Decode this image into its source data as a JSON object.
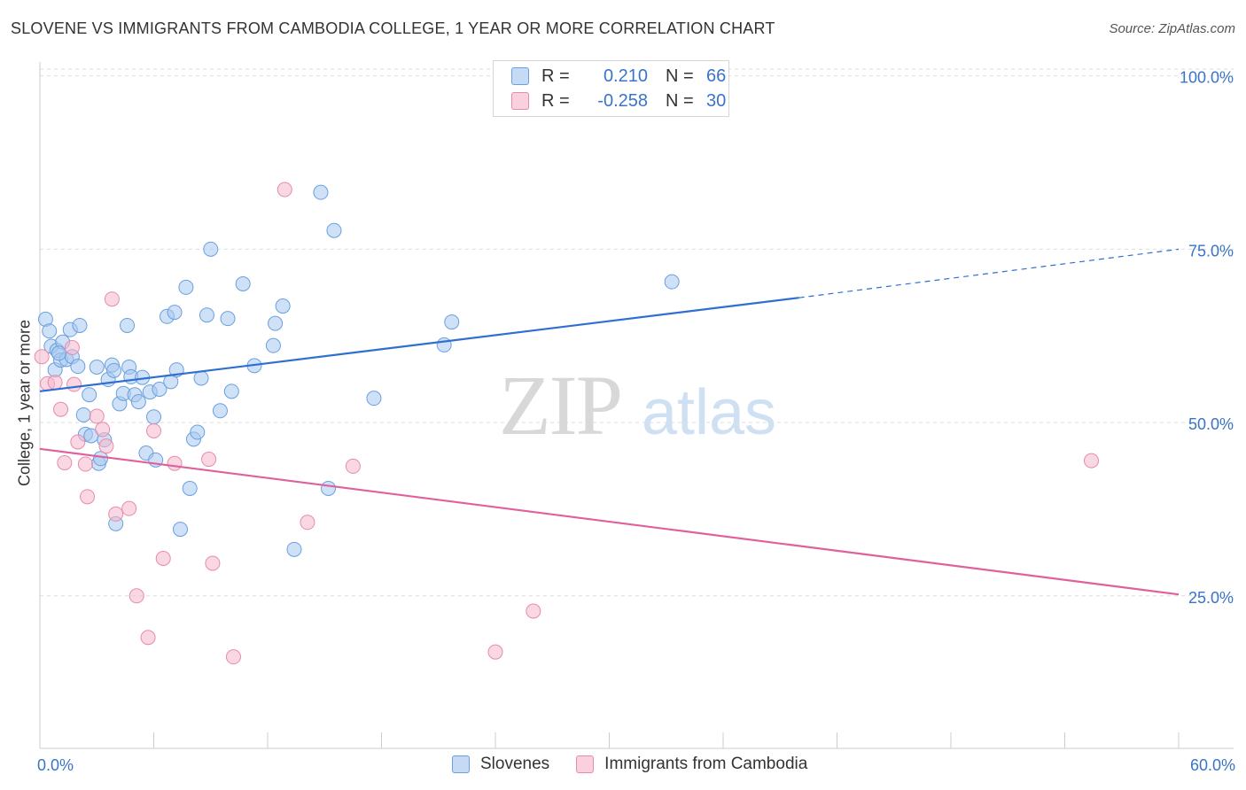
{
  "title": "SLOVENE VS IMMIGRANTS FROM CAMBODIA COLLEGE, 1 YEAR OR MORE CORRELATION CHART",
  "source": "Source: ZipAtlas.com",
  "watermark": {
    "zip": "ZIP",
    "atlas": "atlas"
  },
  "legend_top": {
    "rows": [
      {
        "r_label": "R =",
        "r_value": "0.210",
        "n_label": "N =",
        "n_value": "66",
        "color": "#a8c8f0"
      },
      {
        "r_label": "R =",
        "r_value": "-0.258",
        "n_label": "N =",
        "n_value": "30",
        "color": "#f5b8cc"
      }
    ]
  },
  "legend_bottom": {
    "items": [
      {
        "label": "Slovenes",
        "color": "#a8c8f0"
      },
      {
        "label": "Immigrants from Cambodia",
        "color": "#f5b8cc"
      }
    ]
  },
  "chart_data": {
    "type": "scatter",
    "title": "SLOVENE VS IMMIGRANTS FROM CAMBODIA COLLEGE, 1 YEAR OR MORE CORRELATION CHART",
    "xlabel": "",
    "ylabel": "College, 1 year or more",
    "xlim": [
      0,
      60
    ],
    "ylim": [
      3,
      102
    ],
    "x_tick_labels": [
      {
        "value": 0,
        "label": "0.0%"
      },
      {
        "value": 60,
        "label": "60.0%"
      }
    ],
    "y_tick_labels": [
      {
        "value": 100,
        "label": "100.0%"
      },
      {
        "value": 75,
        "label": "75.0%"
      },
      {
        "value": 50,
        "label": "50.0%"
      },
      {
        "value": 25,
        "label": "25.0%"
      }
    ],
    "grid": true,
    "legend_position": "bottom",
    "series": [
      {
        "name": "Slovenes",
        "color": "#a8c8f0",
        "stroke": "#6a9fdf",
        "trend_color": "#2f6fd0",
        "trend": {
          "x0": 0,
          "y0": 54.5,
          "x1": 40,
          "y1": 68,
          "dashed_to": 60,
          "dashed_y": 75
        },
        "points": [
          [
            0.3,
            64.9
          ],
          [
            0.5,
            63.2
          ],
          [
            0.6,
            61
          ],
          [
            0.8,
            57.6
          ],
          [
            0.9,
            60.4
          ],
          [
            1.1,
            59
          ],
          [
            1.2,
            61.6
          ],
          [
            1.4,
            59.1
          ],
          [
            1.6,
            63.4
          ],
          [
            1.7,
            59.5
          ],
          [
            2.0,
            58.1
          ],
          [
            2.1,
            64
          ],
          [
            2.3,
            51.1
          ],
          [
            2.4,
            48.3
          ],
          [
            2.6,
            54
          ],
          [
            2.7,
            48.1
          ],
          [
            3.0,
            58
          ],
          [
            3.1,
            44.1
          ],
          [
            3.2,
            44.8
          ],
          [
            3.4,
            47.5
          ],
          [
            3.6,
            56.2
          ],
          [
            3.8,
            58.3
          ],
          [
            3.9,
            57.5
          ],
          [
            4.0,
            35.4
          ],
          [
            4.2,
            52.7
          ],
          [
            4.4,
            54.2
          ],
          [
            4.6,
            64
          ],
          [
            4.7,
            58
          ],
          [
            4.8,
            56.6
          ],
          [
            5.0,
            54
          ],
          [
            5.2,
            53
          ],
          [
            5.4,
            56.5
          ],
          [
            5.6,
            45.6
          ],
          [
            5.8,
            54.4
          ],
          [
            6.0,
            50.8
          ],
          [
            6.1,
            44.6
          ],
          [
            6.3,
            54.8
          ],
          [
            6.7,
            65.3
          ],
          [
            6.9,
            55.9
          ],
          [
            7.1,
            65.9
          ],
          [
            7.2,
            57.6
          ],
          [
            7.4,
            34.6
          ],
          [
            7.7,
            69.5
          ],
          [
            7.9,
            40.5
          ],
          [
            8.1,
            47.6
          ],
          [
            8.3,
            48.6
          ],
          [
            8.5,
            56.4
          ],
          [
            8.8,
            65.5
          ],
          [
            9.0,
            75
          ],
          [
            9.5,
            51.7
          ],
          [
            9.9,
            65
          ],
          [
            10.1,
            54.5
          ],
          [
            10.7,
            70
          ],
          [
            11.3,
            58.2
          ],
          [
            12.3,
            61.1
          ],
          [
            12.4,
            64.3
          ],
          [
            12.8,
            66.8
          ],
          [
            13.4,
            31.7
          ],
          [
            14.8,
            83.2
          ],
          [
            15.2,
            40.5
          ],
          [
            15.5,
            77.7
          ],
          [
            17.6,
            53.5
          ],
          [
            21.3,
            61.2
          ],
          [
            21.7,
            64.5
          ],
          [
            33.3,
            70.3
          ],
          [
            1.0,
            60.0
          ]
        ]
      },
      {
        "name": "Immigrants from Cambodia",
        "color": "#f5b8cc",
        "stroke": "#e88aaa",
        "trend_color": "#e0609a",
        "trend": {
          "x0": 0,
          "y0": 46.2,
          "x1": 60,
          "y1": 25.2
        },
        "points": [
          [
            0.1,
            59.5
          ],
          [
            0.4,
            55.6
          ],
          [
            0.8,
            55.8
          ],
          [
            1.1,
            51.9
          ],
          [
            1.3,
            44.2
          ],
          [
            1.7,
            60.8
          ],
          [
            2.0,
            47.2
          ],
          [
            2.4,
            44
          ],
          [
            2.5,
            39.3
          ],
          [
            3.0,
            50.9
          ],
          [
            3.3,
            49
          ],
          [
            3.5,
            46.6
          ],
          [
            3.8,
            67.8
          ],
          [
            4.0,
            36.8
          ],
          [
            4.7,
            37.6
          ],
          [
            5.1,
            25
          ],
          [
            5.7,
            19
          ],
          [
            6.0,
            48.8
          ],
          [
            6.5,
            30.4
          ],
          [
            7.1,
            44.1
          ],
          [
            8.9,
            44.7
          ],
          [
            9.1,
            29.7
          ],
          [
            10.2,
            16.2
          ],
          [
            12.9,
            83.6
          ],
          [
            14.1,
            35.6
          ],
          [
            16.5,
            43.7
          ],
          [
            24.0,
            16.9
          ],
          [
            26.0,
            22.8
          ],
          [
            55.4,
            44.5
          ],
          [
            1.8,
            55.5
          ]
        ]
      }
    ]
  }
}
